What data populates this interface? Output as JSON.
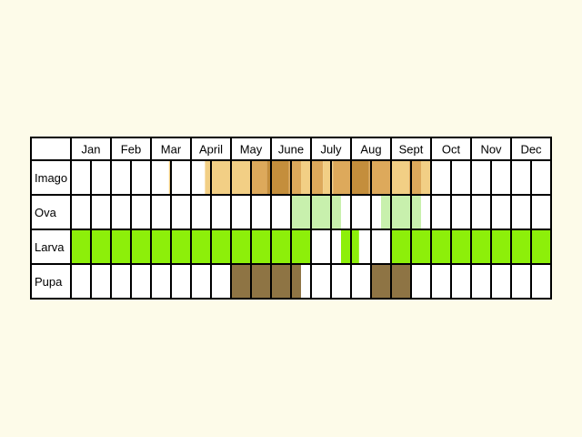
{
  "chart_data": {
    "type": "table",
    "title": "",
    "months": [
      "Jan",
      "Feb",
      "Mar",
      "April",
      "May",
      "June",
      "July",
      "Aug",
      "Sept",
      "Oct",
      "Nov",
      "Dec"
    ],
    "subdivisions_per_month": 2,
    "colors": {
      "grid": "#000000",
      "background": "#fdfbe9",
      "cell_background": "#ffffff",
      "imago_light": "#f2cf85",
      "imago_mid": "#dda95b",
      "imago_dark": "#c48e3c",
      "ova": "#c8f0ad",
      "larva": "#8def0a",
      "pupa": "#8e7444"
    },
    "rows": [
      {
        "label": "Imago",
        "spans": [
          {
            "start": 2.45,
            "end": 2.5,
            "shade": "imago_light"
          },
          {
            "start": 3.35,
            "end": 4.75,
            "shade": "imago_light"
          },
          {
            "start": 4.5,
            "end": 4.9,
            "shade": "imago_mid"
          },
          {
            "start": 4.9,
            "end": 5.45,
            "shade": "imago_dark"
          },
          {
            "start": 5.45,
            "end": 5.75,
            "shade": "imago_mid"
          },
          {
            "start": 5.75,
            "end": 6.0,
            "shade": "imago_light"
          },
          {
            "start": 6.0,
            "end": 6.3,
            "shade": "imago_mid"
          },
          {
            "start": 6.3,
            "end": 6.55,
            "shade": "imago_light"
          },
          {
            "start": 6.55,
            "end": 7.0,
            "shade": "imago_mid"
          },
          {
            "start": 7.0,
            "end": 7.45,
            "shade": "imago_dark"
          },
          {
            "start": 7.45,
            "end": 8.0,
            "shade": "imago_mid"
          },
          {
            "start": 8.0,
            "end": 8.45,
            "shade": "imago_light"
          },
          {
            "start": 8.45,
            "end": 8.75,
            "shade": "imago_mid"
          },
          {
            "start": 8.75,
            "end": 9.0,
            "shade": "imago_light"
          }
        ]
      },
      {
        "label": "Ova",
        "spans": [
          {
            "start": 5.5,
            "end": 6.75,
            "shade": "ova"
          },
          {
            "start": 7.75,
            "end": 8.75,
            "shade": "ova"
          }
        ]
      },
      {
        "label": "Larva",
        "spans": [
          {
            "start": 0.0,
            "end": 6.0,
            "shade": "larva"
          },
          {
            "start": 6.75,
            "end": 7.2,
            "shade": "larva"
          },
          {
            "start": 8.0,
            "end": 12.0,
            "shade": "larva"
          }
        ]
      },
      {
        "label": "Pupa",
        "spans": [
          {
            "start": 4.0,
            "end": 5.75,
            "shade": "pupa"
          },
          {
            "start": 7.5,
            "end": 8.5,
            "shade": "pupa"
          }
        ]
      }
    ]
  }
}
